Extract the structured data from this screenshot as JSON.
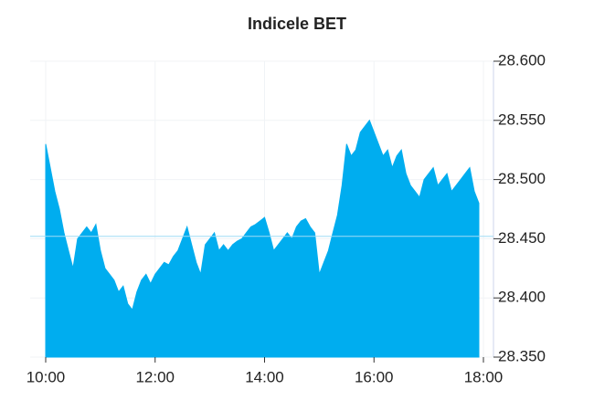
{
  "chart_data": {
    "type": "area",
    "title": "Indicele BET",
    "color": "#00adef",
    "grid": true,
    "y_axis_side": "right",
    "reference_value": 28452,
    "reference_color": "#9fdcf5",
    "x": [
      "10:00",
      "10:05",
      "10:10",
      "10:15",
      "10:20",
      "10:25",
      "10:30",
      "10:35",
      "10:40",
      "10:45",
      "10:50",
      "10:55",
      "11:00",
      "11:05",
      "11:10",
      "11:15",
      "11:20",
      "11:25",
      "11:30",
      "11:35",
      "11:40",
      "11:45",
      "11:50",
      "11:55",
      "12:00",
      "12:05",
      "12:10",
      "12:15",
      "12:20",
      "12:25",
      "12:30",
      "12:35",
      "12:40",
      "12:45",
      "12:50",
      "12:55",
      "13:00",
      "13:05",
      "13:10",
      "13:15",
      "13:20",
      "13:25",
      "13:30",
      "13:35",
      "13:40",
      "13:45",
      "13:50",
      "13:55",
      "14:00",
      "14:05",
      "14:10",
      "14:15",
      "14:20",
      "14:25",
      "14:30",
      "14:35",
      "14:40",
      "14:45",
      "14:50",
      "14:55",
      "15:00",
      "15:05",
      "15:10",
      "15:15",
      "15:20",
      "15:25",
      "15:30",
      "15:35",
      "15:40",
      "15:45",
      "15:50",
      "15:55",
      "16:00",
      "16:05",
      "16:10",
      "16:15",
      "16:20",
      "16:25",
      "16:30",
      "16:35",
      "16:40",
      "16:45",
      "16:50",
      "16:55",
      "17:00",
      "17:05",
      "17:10",
      "17:15",
      "17:20",
      "17:25",
      "17:30",
      "17:35",
      "17:40",
      "17:45",
      "17:50",
      "17:55"
    ],
    "values": [
      28530,
      28510,
      28490,
      28475,
      28455,
      28440,
      28425,
      28450,
      28455,
      28460,
      28455,
      28462,
      28440,
      28425,
      28420,
      28415,
      28405,
      28410,
      28395,
      28390,
      28405,
      28415,
      28420,
      28412,
      28420,
      28425,
      28430,
      28428,
      28435,
      28440,
      28450,
      28460,
      28445,
      28430,
      28420,
      28445,
      28450,
      28455,
      28440,
      28445,
      28440,
      28445,
      28448,
      28450,
      28455,
      28460,
      28462,
      28465,
      28468,
      28455,
      28440,
      28445,
      28450,
      28455,
      28450,
      28460,
      28465,
      28467,
      28460,
      28455,
      28420,
      28430,
      28440,
      28455,
      28470,
      28495,
      28530,
      28520,
      28525,
      28540,
      28545,
      28550,
      28540,
      28530,
      28520,
      28525,
      28510,
      28520,
      28525,
      28505,
      28495,
      28490,
      28485,
      28500,
      28505,
      28510,
      28495,
      28500,
      28505,
      28490,
      28495,
      28500,
      28505,
      28510,
      28490,
      28480
    ],
    "xlim": [
      "10:00",
      "18:00"
    ],
    "xticks": [
      "10:00",
      "12:00",
      "14:00",
      "16:00",
      "18:00"
    ],
    "ylim": [
      28350,
      28600
    ],
    "yticks": [
      {
        "value": 28350,
        "label": "28.350"
      },
      {
        "value": 28400,
        "label": "28.400"
      },
      {
        "value": 28450,
        "label": "28.450"
      },
      {
        "value": 28500,
        "label": "28.500"
      },
      {
        "value": 28550,
        "label": "28.550"
      },
      {
        "value": 28600,
        "label": "28.600"
      }
    ]
  }
}
